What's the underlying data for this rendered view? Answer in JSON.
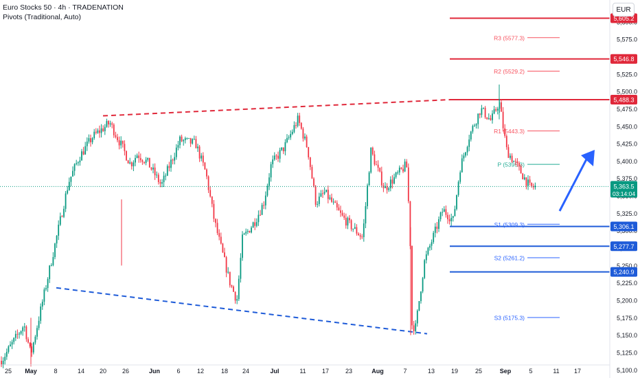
{
  "header": {
    "symbol_title": "Euro Stocks 50 · 4h · TRADENATION",
    "indicator": "Pivots (Traditional, Auto)"
  },
  "currency_button": "EUR",
  "colors": {
    "up": "#089981",
    "down": "#f23645",
    "resistance": "#e0283a",
    "support": "#1e5bd8",
    "axis_text": "#131722",
    "price_line": "#089981"
  },
  "chart_data": {
    "type": "candlestick",
    "x_tick_labels": [
      "25",
      "May",
      "8",
      "14",
      "20",
      "26",
      "Jun",
      "6",
      "12",
      "18",
      "24",
      "Jul",
      "11",
      "17",
      "23",
      "Aug",
      "7",
      "13",
      "19",
      "25",
      "Sep",
      "5",
      "11",
      "17"
    ],
    "y_tick_labels": [
      "5,100.0",
      "5,125.0",
      "5,150.0",
      "5,175.0",
      "5,200.0",
      "5,225.0",
      "5,250.0",
      "5,275.0",
      "5,300.0",
      "5,325.0",
      "5,350.0",
      "5,375.0",
      "5,400.0",
      "5,425.0",
      "5,450.0",
      "5,475.0",
      "5,500.0",
      "5,525.0",
      "5,550.0",
      "5,575.0",
      "5,600.0"
    ],
    "ylim": [
      5090,
      5620
    ],
    "horizontal_levels": [
      {
        "value": 5605.2,
        "label": "5,605.2",
        "kind": "resistance"
      },
      {
        "value": 5546.8,
        "label": "5,546.8",
        "kind": "resistance"
      },
      {
        "value": 5488.3,
        "label": "5,488.3",
        "kind": "resistance"
      },
      {
        "value": 5306.1,
        "label": "5,306.1",
        "kind": "support"
      },
      {
        "value": 5277.7,
        "label": "5,277.7",
        "kind": "support"
      },
      {
        "value": 5240.9,
        "label": "5,240.9",
        "kind": "support"
      }
    ],
    "pivots": [
      {
        "label": "R3 (5577.3)",
        "value": 5577.3,
        "kind": "resistance"
      },
      {
        "label": "R2 (5529.2)",
        "value": 5529.2,
        "kind": "resistance"
      },
      {
        "label": "R1 (5443.3)",
        "value": 5443.3,
        "kind": "resistance"
      },
      {
        "label": "P (5395.3)",
        "value": 5395.3,
        "kind": "pivot"
      },
      {
        "label": "S1 (5309.3)",
        "value": 5309.3,
        "kind": "support"
      },
      {
        "label": "S2 (5261.2)",
        "value": 5261.2,
        "kind": "support"
      },
      {
        "label": "S3 (5175.3)",
        "value": 5175.3,
        "kind": "support"
      }
    ],
    "current_price": {
      "value": 5363.5,
      "label": "5,363.5",
      "countdown": "03:14:04"
    },
    "trendlines": [
      {
        "kind": "resistance",
        "from": {
          "x": "20",
          "y": 5465
        },
        "to": {
          "x": "25",
          "y": 5488
        }
      },
      {
        "kind": "support",
        "from": {
          "x": "8",
          "y": 5218
        },
        "to": {
          "x": "7",
          "y": 5152
        }
      }
    ],
    "anchors": [
      {
        "x": "30",
        "y": 5110
      },
      {
        "x": "1",
        "y": 5165
      },
      {
        "x": "3",
        "y": 5122
      },
      {
        "x": "9",
        "y": 5370
      },
      {
        "x": "12",
        "y": 5405
      },
      {
        "x": "16",
        "y": 5435
      },
      {
        "x": "19",
        "y": 5455
      },
      {
        "x": "22",
        "y": 5420
      },
      {
        "x": "25",
        "y": 5395
      },
      {
        "x": "27",
        "y": 5410
      },
      {
        "x": "30",
        "y": 5398
      },
      {
        "x": "3",
        "y": 5365
      },
      {
        "x": "6",
        "y": 5430
      },
      {
        "x": "10",
        "y": 5425
      },
      {
        "x": "13",
        "y": 5382
      },
      {
        "x": "17",
        "y": 5315
      },
      {
        "x": "19",
        "y": 5275
      },
      {
        "x": "21",
        "y": 5225
      },
      {
        "x": "24",
        "y": 5200
      },
      {
        "x": "26",
        "y": 5288
      },
      {
        "x": "29",
        "y": 5315
      },
      {
        "x": "2",
        "y": 5340
      },
      {
        "x": "5",
        "y": 5395
      },
      {
        "x": "8",
        "y": 5420
      },
      {
        "x": "10",
        "y": 5460
      },
      {
        "x": "12",
        "y": 5418
      },
      {
        "x": "15",
        "y": 5340
      },
      {
        "x": "19",
        "y": 5355
      },
      {
        "x": "22",
        "y": 5320
      },
      {
        "x": "24",
        "y": 5290
      },
      {
        "x": "26",
        "y": 5415
      },
      {
        "x": "28",
        "y": 5360
      },
      {
        "x": "30",
        "y": 5395
      },
      {
        "x": "1",
        "y": 5300
      },
      {
        "x": "2",
        "y": 5165
      },
      {
        "x": "3",
        "y": 5160
      },
      {
        "x": "5",
        "y": 5255
      },
      {
        "x": "7",
        "y": 5275
      },
      {
        "x": "9",
        "y": 5330
      },
      {
        "x": "13",
        "y": 5315
      },
      {
        "x": "15",
        "y": 5390
      },
      {
        "x": "17",
        "y": 5435
      },
      {
        "x": "20",
        "y": 5475
      },
      {
        "x": "23",
        "y": 5458
      },
      {
        "x": "25",
        "y": 5485
      },
      {
        "x": "27",
        "y": 5415
      },
      {
        "x": "29",
        "y": 5385
      },
      {
        "x": "31",
        "y": 5362
      },
      {
        "x": "1",
        "y": 5363.5
      }
    ],
    "grid": false,
    "legend": "none"
  }
}
